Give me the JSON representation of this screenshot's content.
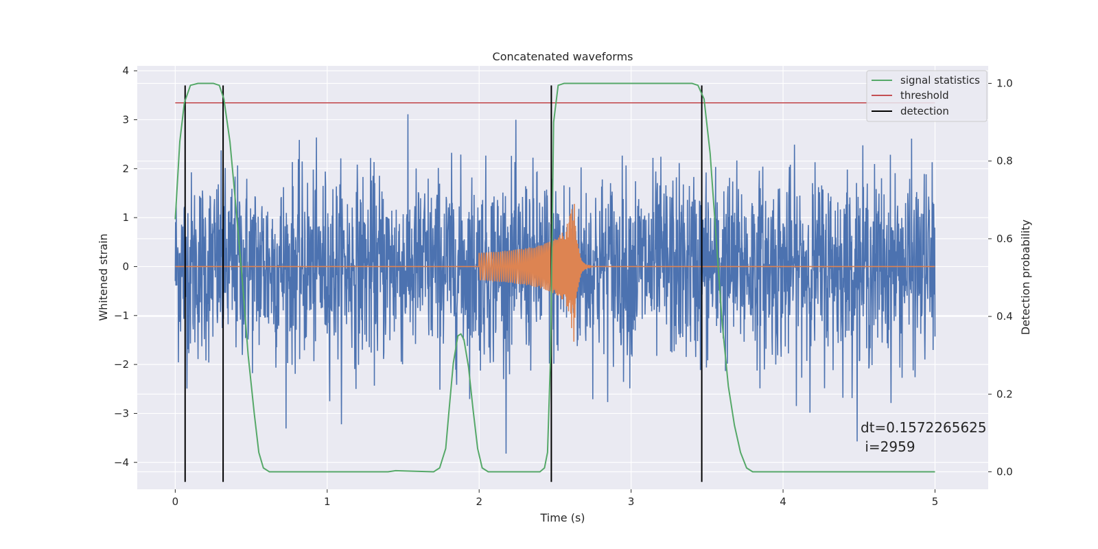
{
  "chart_data": {
    "type": "line",
    "title": "Concatenated waveforms",
    "xlabel": "Time (s)",
    "ylabel": "Whitened strain",
    "y2label": "Detection probability",
    "xlim": [
      -0.25,
      5.35
    ],
    "ylim": [
      -4.55,
      4.1
    ],
    "y2lim": [
      -0.045,
      1.045
    ],
    "xticks": [
      0,
      1,
      2,
      3,
      4,
      5
    ],
    "xtick_labels": [
      "0",
      "1",
      "2",
      "3",
      "4",
      "5"
    ],
    "yticks": [
      -4,
      -3,
      -2,
      -1,
      0,
      1,
      2,
      3,
      4
    ],
    "ytick_labels": [
      "−4",
      "−3",
      "−2",
      "−1",
      "0",
      "1",
      "2",
      "3",
      "4"
    ],
    "y2ticks": [
      0,
      0.2,
      0.4,
      0.6,
      0.8,
      1.0
    ],
    "y2tick_labels": [
      "0.0",
      "0.2",
      "0.4",
      "0.6",
      "0.8",
      "1.0"
    ],
    "grid": true,
    "legend_position": "top-right",
    "legend": [
      "signal statistics",
      "threshold",
      "detection"
    ],
    "colors": {
      "noise": "#4c72b0",
      "template": "#dd8452",
      "statistic": "#55a868",
      "threshold": "#c44e52",
      "detection": "#000000",
      "axes_bg": "#eaeaf2",
      "grid": "#ffffff"
    },
    "series": [
      {
        "name": "signal statistics",
        "axis": "right",
        "points": [
          [
            0,
            0.65
          ],
          [
            0.03,
            0.85
          ],
          [
            0.06,
            0.95
          ],
          [
            0.1,
            0.995
          ],
          [
            0.15,
            1.0
          ],
          [
            0.25,
            1.0
          ],
          [
            0.29,
            0.995
          ],
          [
            0.32,
            0.96
          ],
          [
            0.36,
            0.85
          ],
          [
            0.4,
            0.68
          ],
          [
            0.44,
            0.5
          ],
          [
            0.48,
            0.3
          ],
          [
            0.52,
            0.15
          ],
          [
            0.55,
            0.05
          ],
          [
            0.58,
            0.01
          ],
          [
            0.62,
            0.0
          ],
          [
            1.0,
            0.0
          ],
          [
            1.4,
            0.0
          ],
          [
            1.45,
            0.003
          ],
          [
            1.7,
            0.0
          ],
          [
            1.74,
            0.01
          ],
          [
            1.78,
            0.06
          ],
          [
            1.8,
            0.15
          ],
          [
            1.83,
            0.28
          ],
          [
            1.86,
            0.35
          ],
          [
            1.88,
            0.355
          ],
          [
            1.9,
            0.34
          ],
          [
            1.93,
            0.27
          ],
          [
            1.96,
            0.16
          ],
          [
            1.99,
            0.06
          ],
          [
            2.02,
            0.01
          ],
          [
            2.06,
            0.0
          ],
          [
            2.4,
            0.0
          ],
          [
            2.43,
            0.01
          ],
          [
            2.45,
            0.05
          ],
          [
            2.47,
            0.3
          ],
          [
            2.49,
            0.9
          ],
          [
            2.52,
            0.995
          ],
          [
            2.56,
            1.0
          ],
          [
            3.4,
            1.0
          ],
          [
            3.44,
            0.995
          ],
          [
            3.48,
            0.96
          ],
          [
            3.52,
            0.82
          ],
          [
            3.56,
            0.6
          ],
          [
            3.6,
            0.38
          ],
          [
            3.64,
            0.22
          ],
          [
            3.68,
            0.12
          ],
          [
            3.72,
            0.05
          ],
          [
            3.76,
            0.01
          ],
          [
            3.8,
            0.0
          ],
          [
            4.5,
            0.0
          ],
          [
            5.0,
            0.0
          ]
        ]
      },
      {
        "name": "threshold",
        "axis": "right",
        "value": 0.95
      },
      {
        "name": "detection",
        "axis": "left",
        "x": [
          0.065,
          0.315,
          2.475,
          3.465
        ],
        "ymin": -4.4,
        "ymax": 3.7
      }
    ],
    "annotation": {
      "text_line1": "dt=0.1572265625",
      "text_line2": " i=2959",
      "x": 4.5,
      "y": -3.4
    }
  }
}
